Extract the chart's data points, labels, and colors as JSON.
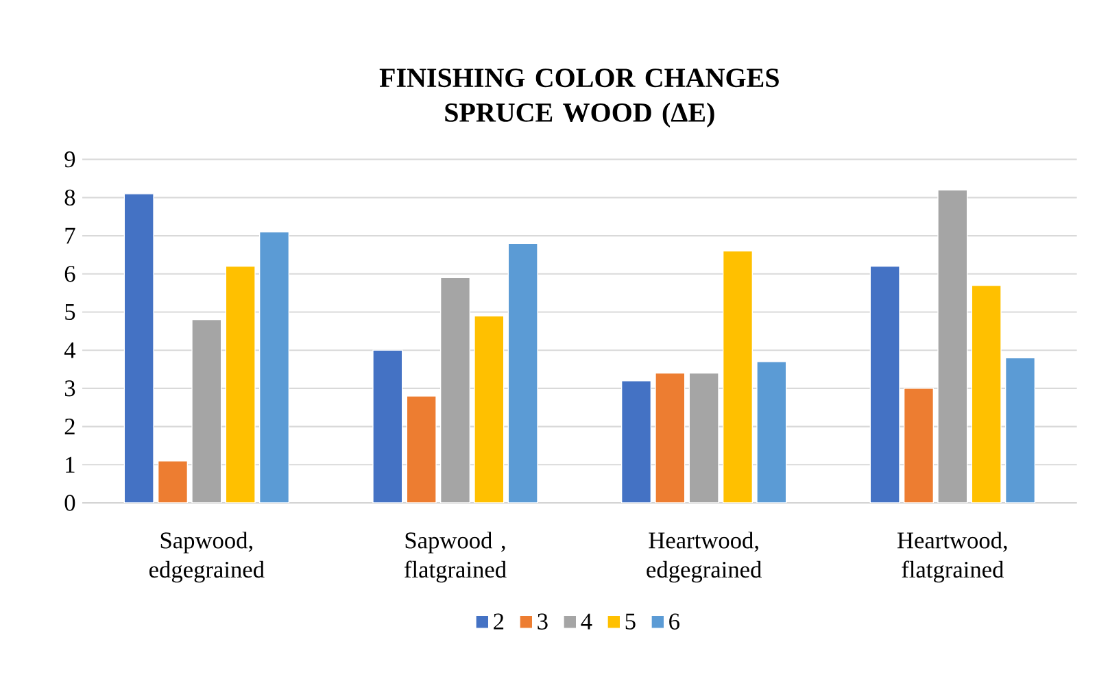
{
  "chart_data": {
    "type": "bar",
    "title": "FINISHING COLOR CHANGES SPRUCE WOOD (ΔE)",
    "categories": [
      "Sapwood, edgegrained",
      "Sapwood , flatgrained",
      "Heartwood, edgegrained",
      "Heartwood, flatgrained"
    ],
    "series": [
      {
        "name": "2",
        "color": "#4472c4",
        "values": [
          8.1,
          4.0,
          3.2,
          6.2
        ]
      },
      {
        "name": "3",
        "color": "#ed7d31",
        "values": [
          1.1,
          2.8,
          3.4,
          3.0
        ]
      },
      {
        "name": "4",
        "color": "#a5a5a5",
        "values": [
          4.8,
          5.9,
          3.4,
          8.2
        ]
      },
      {
        "name": "5",
        "color": "#ffc000",
        "values": [
          6.2,
          4.9,
          6.6,
          5.7
        ]
      },
      {
        "name": "6",
        "color": "#5b9bd5",
        "values": [
          7.1,
          6.8,
          3.7,
          3.8
        ]
      }
    ],
    "ylim": [
      0,
      9
    ],
    "yticks": [
      0,
      1,
      2,
      3,
      4,
      5,
      6,
      7,
      8,
      9
    ],
    "grid": "y",
    "legend": "bottom"
  }
}
